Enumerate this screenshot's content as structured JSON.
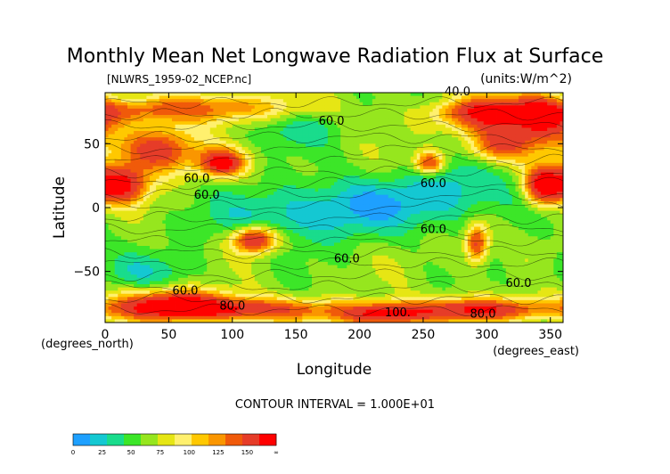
{
  "chart_data": {
    "type": "heatmap",
    "title": "Monthly Mean Net Longwave Radiation Flux at Surface",
    "file_label": "[NLWRS_1959-02_NCEP.nc]",
    "units_label": "(units:W/m^2)",
    "xlabel": "Longitude",
    "ylabel": "Latitude",
    "x_unit_label": "(degrees_east)",
    "y_unit_label": "(degrees_north)",
    "xlim": [
      0,
      360
    ],
    "ylim": [
      -90,
      90
    ],
    "x_ticks": [
      0,
      50,
      100,
      150,
      200,
      250,
      300,
      350
    ],
    "y_ticks": [
      50,
      0,
      -50
    ],
    "contour_interval_text": "CONTOUR INTERVAL = 1.000E+01",
    "contour_labels": [
      {
        "text": "40.0",
        "lon": 277,
        "lat": 88
      },
      {
        "text": "60.0",
        "lon": 178,
        "lat": 65
      },
      {
        "text": "60.0",
        "lon": 72,
        "lat": 20
      },
      {
        "text": "60.0",
        "lon": 80,
        "lat": 7
      },
      {
        "text": "60.0",
        "lon": 258,
        "lat": 16
      },
      {
        "text": "60.0",
        "lon": 258,
        "lat": -20
      },
      {
        "text": "60.0",
        "lon": 190,
        "lat": -43
      },
      {
        "text": "60.0",
        "lon": 63,
        "lat": -68
      },
      {
        "text": "60.0",
        "lon": 325,
        "lat": -62
      },
      {
        "text": "80.0",
        "lon": 100,
        "lat": -80
      },
      {
        "text": "80.0",
        "lon": 297,
        "lat": -86
      },
      {
        "text": "100.",
        "lon": 230,
        "lat": -85
      }
    ],
    "colorbar": {
      "tick_labels": [
        "0",
        "25",
        "50",
        "75",
        "100",
        "125",
        "150",
        "∞"
      ],
      "colors": [
        "#1ea0ff",
        "#14c8d2",
        "#19dc8c",
        "#3ce628",
        "#96e61e",
        "#e6e614",
        "#fff06e",
        "#ffc800",
        "#fa9600",
        "#f05a0a",
        "#e63c28",
        "#ff0000"
      ]
    }
  }
}
